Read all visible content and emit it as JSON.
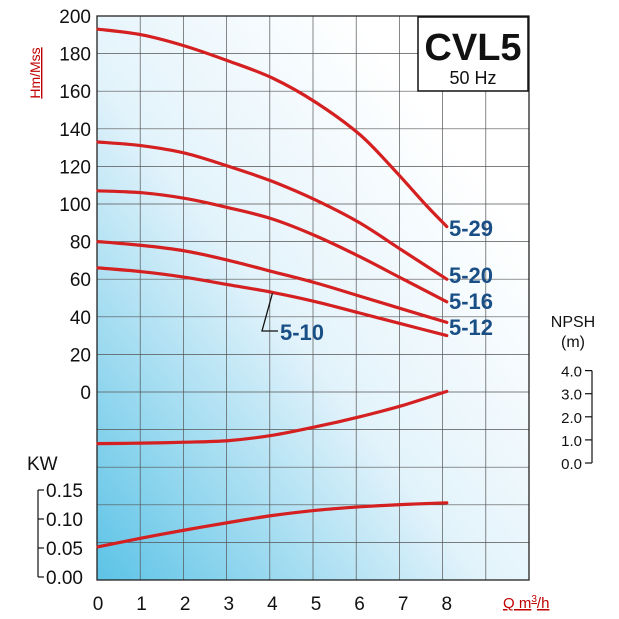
{
  "chart_data": {
    "type": "line",
    "title": "CVL5",
    "subtitle": "50 Hz",
    "colors": {
      "curve": "#d42020",
      "label": "#1a4f86",
      "unit": "#c00000",
      "grid": "#555555"
    },
    "x_axis": {
      "label": "Q m3/h",
      "label_main": "Q m",
      "label_sup": "3",
      "label_end": "/h",
      "ticks": [
        "0",
        "1",
        "2",
        "3",
        "4",
        "5",
        "6",
        "7",
        "8"
      ],
      "range": [
        0,
        8
      ]
    },
    "head_axis": {
      "label": "Hm/Mss",
      "ticks": [
        "200",
        "180",
        "160",
        "140",
        "120",
        "100",
        "80",
        "60",
        "40",
        "20",
        "0"
      ],
      "range": [
        0,
        200
      ]
    },
    "npsh_axis": {
      "label_line1": "NPSH",
      "label_line2": "(m)",
      "ticks": [
        "4.0",
        "3.0",
        "2.0",
        "1.0",
        "0.0"
      ],
      "range": [
        0,
        4
      ]
    },
    "power_axis": {
      "label": "KW",
      "ticks": [
        "0.15",
        "0.10",
        "0.05",
        "0.00"
      ],
      "range": [
        0,
        0.15
      ]
    },
    "series": [
      {
        "name": "5-29",
        "x": [
          0,
          1,
          2,
          3,
          4,
          5,
          6,
          6.8,
          7.5,
          8
        ],
        "y": [
          193,
          190,
          184,
          176,
          167,
          154,
          137,
          118,
          100,
          88
        ]
      },
      {
        "name": "5-20",
        "x": [
          0,
          1,
          2,
          3,
          4,
          5,
          6,
          7,
          8
        ],
        "y": [
          133,
          131,
          127,
          120,
          112,
          102,
          90,
          75,
          60
        ]
      },
      {
        "name": "5-16",
        "x": [
          0,
          1,
          2,
          3,
          4,
          5,
          6,
          7,
          8
        ],
        "y": [
          107,
          106,
          103,
          98,
          92,
          83,
          72,
          60,
          48
        ]
      },
      {
        "name": "5-12",
        "x": [
          0,
          1,
          2,
          3,
          4,
          5,
          6,
          7,
          8
        ],
        "y": [
          80,
          78,
          75,
          70,
          64,
          58,
          51,
          44,
          37
        ]
      },
      {
        "name": "5-10",
        "x": [
          0,
          1,
          2,
          3,
          4,
          5,
          6,
          7,
          8
        ],
        "y": [
          66,
          64,
          61,
          57,
          53,
          48,
          42,
          36,
          30
        ]
      }
    ],
    "npsh_curve": {
      "x": [
        0,
        1,
        2,
        3,
        4,
        5,
        6,
        7,
        8
      ],
      "y": [
        0.84,
        0.86,
        0.9,
        0.97,
        1.2,
        1.57,
        2.0,
        2.5,
        3.1
      ]
    },
    "power_curve": {
      "x": [
        0,
        1,
        2,
        3,
        4,
        5,
        6,
        7,
        8
      ],
      "y": [
        0.052,
        0.067,
        0.081,
        0.094,
        0.106,
        0.115,
        0.121,
        0.125,
        0.128
      ]
    }
  }
}
